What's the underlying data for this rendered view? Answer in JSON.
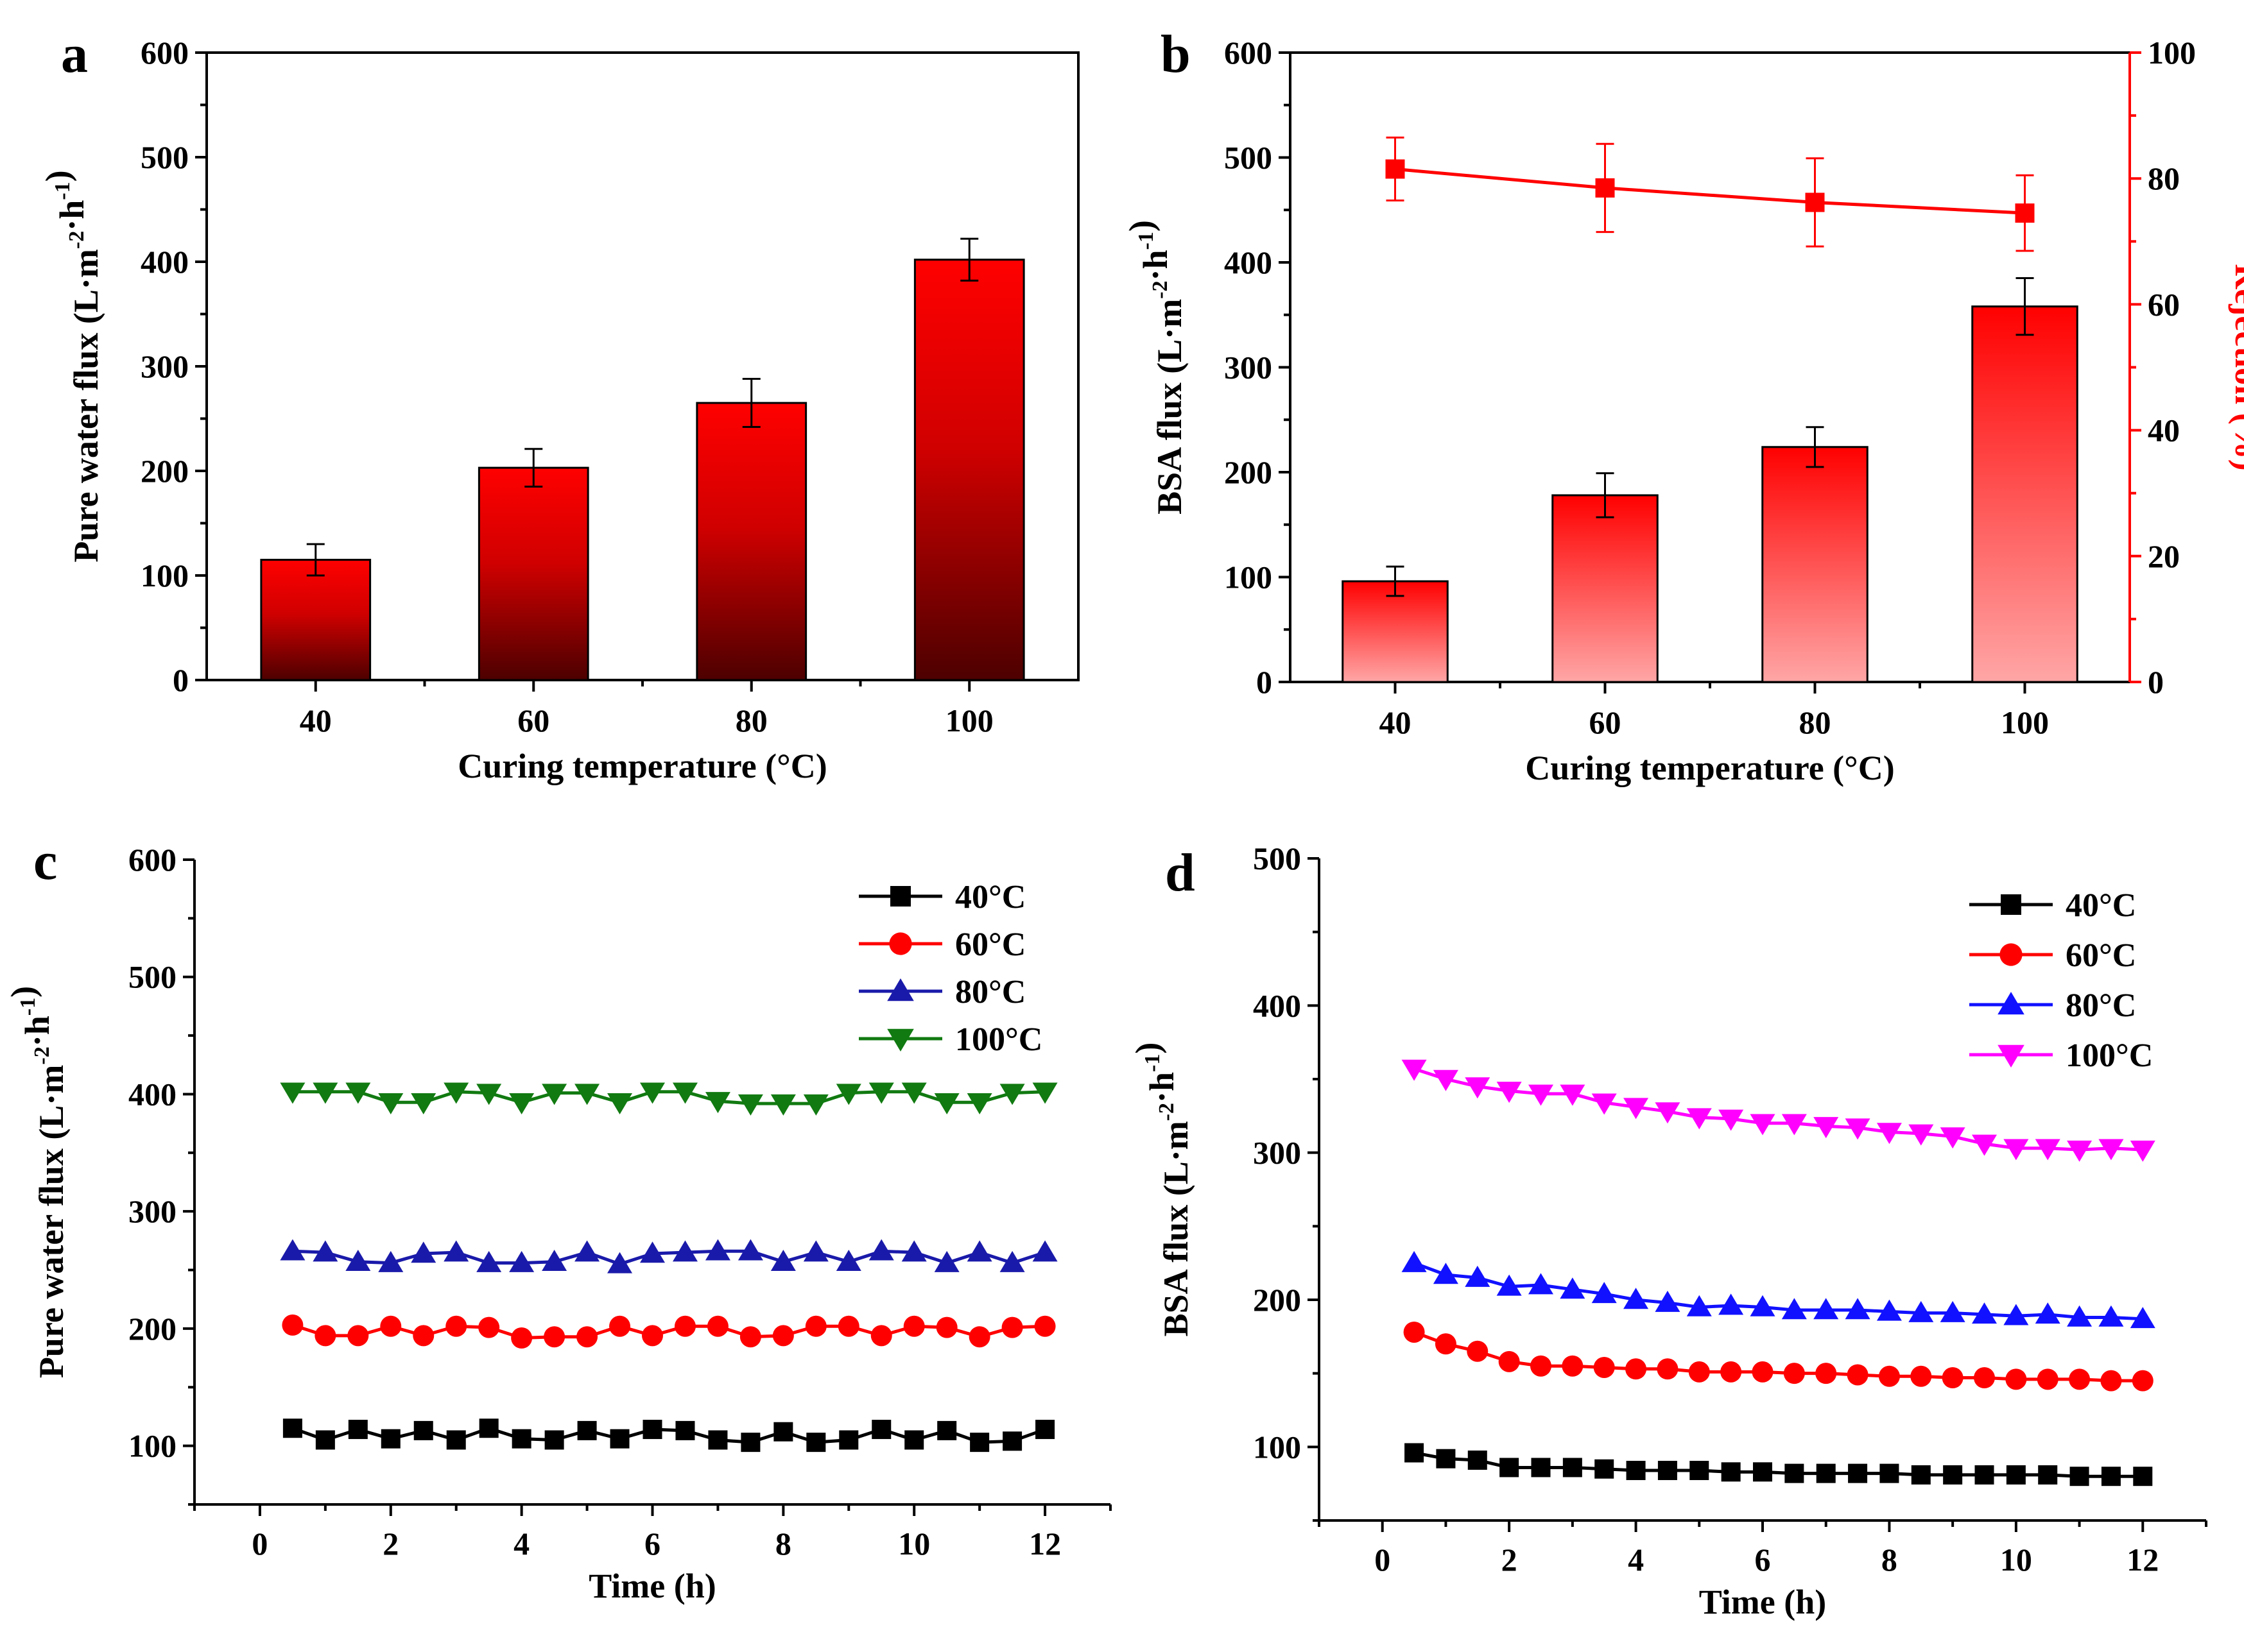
{
  "colors": {
    "black": "#000000",
    "red": "#ff0000",
    "dark_red": "#4d0000",
    "light_red": "#ff9f9f",
    "navy": "#1a1aaa",
    "purple_text": "#3a0a8a",
    "green": "#117a11",
    "green_text": "#1a8c1a",
    "blue": "#1111ff",
    "magenta": "#ff00ff"
  },
  "chart_data": [
    {
      "id": "a",
      "panel_label": "a",
      "type": "bar",
      "title": "",
      "xlabel": "Curing temperature (°C)",
      "ylabel": "Pure water flux (L·m⁻²·h⁻¹)",
      "categories": [
        "40",
        "60",
        "80",
        "100"
      ],
      "values": [
        115,
        203,
        265,
        402
      ],
      "errors": [
        15,
        18,
        23,
        20
      ],
      "ylim": [
        0,
        600
      ],
      "yticks": [
        0,
        100,
        200,
        300,
        400,
        500,
        600
      ],
      "gradient": "red-top-to-dark-bottom"
    },
    {
      "id": "b",
      "panel_label": "b",
      "type": "bar",
      "title": "",
      "xlabel": "Curing temperature (°C)",
      "ylabel": "BSA flux (L·m⁻²·h⁻¹)",
      "ylabel_right": "Rejection (%)",
      "categories": [
        "40",
        "60",
        "80",
        "100"
      ],
      "values": [
        96,
        178,
        224,
        358
      ],
      "errors": [
        14,
        21,
        19,
        27
      ],
      "ylim": [
        0,
        600
      ],
      "yticks": [
        0,
        100,
        200,
        300,
        400,
        500,
        600
      ],
      "ylim_right": [
        0,
        100
      ],
      "yticks_right": [
        0,
        20,
        40,
        60,
        80,
        100
      ],
      "rejection": {
        "values": [
          81.5,
          78.5,
          76.2,
          74.5
        ],
        "errors": [
          5,
          7,
          7,
          6
        ]
      },
      "gradient": "red-top-to-light-bottom"
    },
    {
      "id": "c",
      "panel_label": "c",
      "type": "line",
      "title": "",
      "xlabel": "Time (h)",
      "ylabel": "Pure water flux (L·m⁻²·h⁻¹)",
      "x": [
        0.5,
        1,
        1.5,
        2,
        2.5,
        3,
        3.5,
        4,
        4.5,
        5,
        5.5,
        6,
        6.5,
        7,
        7.5,
        8,
        8.5,
        9,
        9.5,
        10,
        10.5,
        11,
        11.5,
        12
      ],
      "xlim": [
        -1,
        13
      ],
      "xticks": [
        0,
        2,
        4,
        6,
        8,
        10,
        12
      ],
      "ylim": [
        50,
        600
      ],
      "yticks": [
        100,
        200,
        300,
        400,
        500,
        600
      ],
      "series": [
        {
          "name": "40°C",
          "marker": "square",
          "values": [
            115,
            105,
            114,
            106,
            113,
            105,
            115,
            106,
            105,
            113,
            106,
            114,
            113,
            105,
            103,
            112,
            103,
            105,
            114,
            105,
            113,
            103,
            104,
            114
          ]
        },
        {
          "name": "60°C",
          "marker": "circle",
          "values": [
            203,
            194,
            194,
            202,
            194,
            202,
            201,
            192,
            193,
            193,
            202,
            194,
            202,
            202,
            193,
            194,
            202,
            202,
            194,
            202,
            201,
            193,
            201,
            202
          ]
        },
        {
          "name": "80°C",
          "marker": "triangle-up",
          "values": [
            266,
            265,
            257,
            256,
            264,
            265,
            256,
            256,
            257,
            265,
            255,
            264,
            265,
            266,
            266,
            257,
            265,
            257,
            266,
            265,
            256,
            265,
            256,
            265
          ]
        },
        {
          "name": "100°C",
          "marker": "triangle-down",
          "values": [
            402,
            402,
            402,
            393,
            393,
            402,
            401,
            393,
            401,
            401,
            393,
            402,
            402,
            394,
            392,
            392,
            392,
            401,
            402,
            402,
            393,
            393,
            401,
            402
          ]
        }
      ],
      "legend_position": "top-right"
    },
    {
      "id": "d",
      "panel_label": "d",
      "type": "line",
      "title": "",
      "xlabel": "Time (h)",
      "ylabel": "BSA flux (L·m⁻²·h⁻¹)",
      "x": [
        0.5,
        1,
        1.5,
        2,
        2.5,
        3,
        3.5,
        4,
        4.5,
        5,
        5.5,
        6,
        6.5,
        7,
        7.5,
        8,
        8.5,
        9,
        9.5,
        10,
        10.5,
        11,
        11.5,
        12
      ],
      "xlim": [
        -1,
        13
      ],
      "xticks": [
        0,
        2,
        4,
        6,
        8,
        10,
        12
      ],
      "ylim": [
        50,
        500
      ],
      "yticks": [
        100,
        200,
        300,
        400,
        500
      ],
      "series": [
        {
          "name": "40°C",
          "marker": "square",
          "values": [
            96,
            92,
            91,
            86,
            86,
            86,
            85,
            84,
            84,
            84,
            83,
            83,
            82,
            82,
            82,
            82,
            81,
            81,
            81,
            81,
            81,
            80,
            80,
            80
          ]
        },
        {
          "name": "60°C",
          "marker": "circle",
          "values": [
            178,
            170,
            165,
            158,
            155,
            155,
            154,
            153,
            153,
            151,
            151,
            151,
            150,
            150,
            149,
            148,
            148,
            147,
            147,
            146,
            146,
            146,
            145,
            145
          ]
        },
        {
          "name": "80°C",
          "marker": "triangle-up",
          "values": [
            225,
            217,
            215,
            209,
            210,
            207,
            204,
            200,
            198,
            195,
            196,
            195,
            193,
            193,
            193,
            192,
            191,
            191,
            190,
            189,
            190,
            188,
            188,
            187
          ]
        },
        {
          "name": "100°C",
          "marker": "triangle-down",
          "values": [
            357,
            350,
            345,
            342,
            340,
            340,
            334,
            331,
            328,
            324,
            323,
            320,
            320,
            318,
            317,
            314,
            313,
            311,
            306,
            303,
            303,
            302,
            303,
            302
          ]
        }
      ],
      "legend_position": "top-right"
    }
  ]
}
